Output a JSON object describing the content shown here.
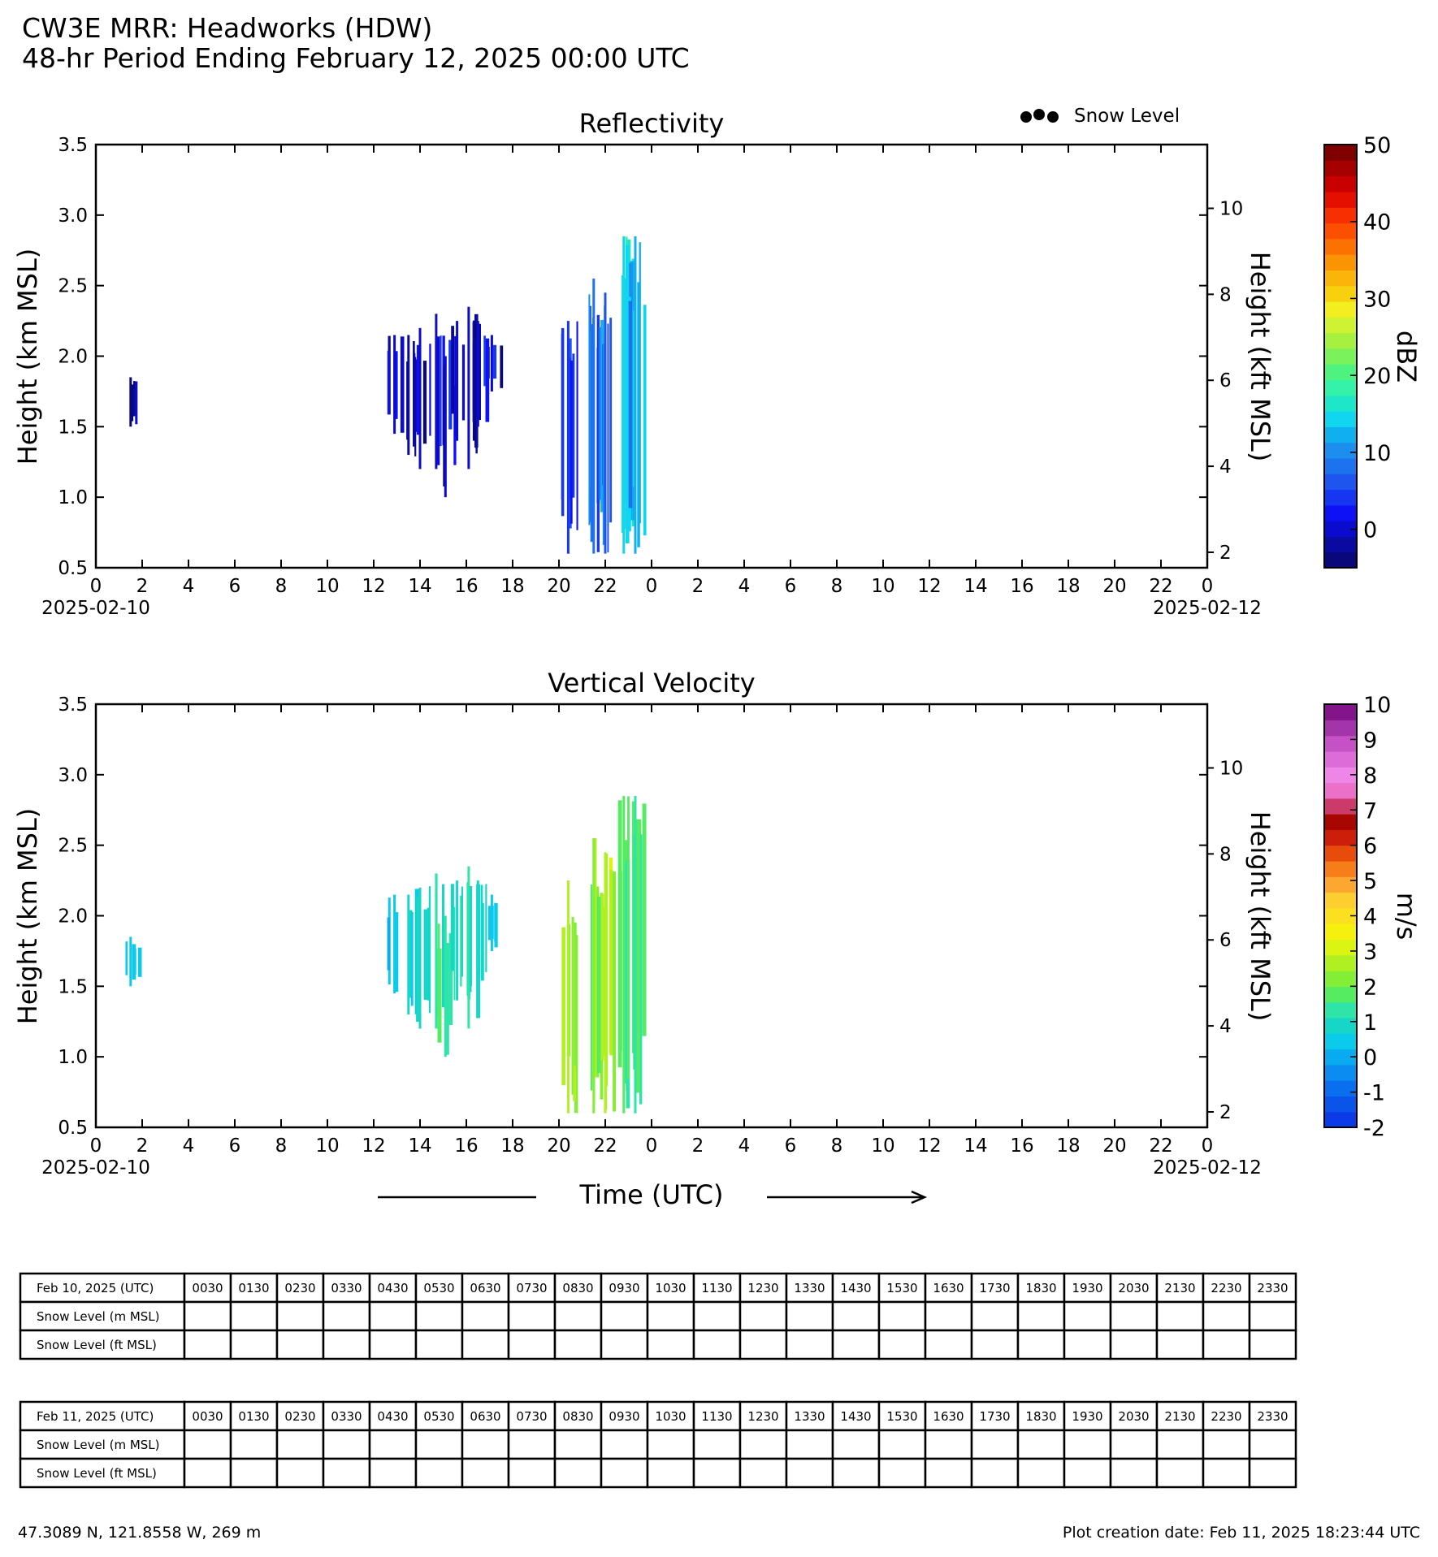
{
  "header": {
    "title_line1": "CW3E MRR: Headworks (HDW)",
    "title_line2": "48-hr Period Ending February 12, 2025 00:00 UTC"
  },
  "legend": {
    "snow_level_label": "Snow Level"
  },
  "colors": {
    "reflectivity_bar": [
      "#08087a",
      "#0a0aa0",
      "#0b0bd0",
      "#0e10f5",
      "#1637f2",
      "#1d55ee",
      "#1d72ee",
      "#1c8fee",
      "#10b0ee",
      "#10d6f0",
      "#1ee6c8",
      "#34f2a8",
      "#4ef27e",
      "#7af25c",
      "#a6f040",
      "#cff232",
      "#f2ee20",
      "#f8d00e",
      "#fbb40a",
      "#fb9405",
      "#fc7202",
      "#fc5000",
      "#f63000",
      "#e40f00",
      "#ca0000",
      "#a60000",
      "#800000"
    ],
    "velocity_bar": [
      "#0c3ae6",
      "#0b54ea",
      "#0a6fee",
      "#0a8cf0",
      "#08aaf0",
      "#0acbec",
      "#16d6c8",
      "#2ee4a8",
      "#56ec62",
      "#84ee36",
      "#b0f022",
      "#dcf412",
      "#f6f00e",
      "#fae01e",
      "#fcce30",
      "#fca830",
      "#f67e1a",
      "#e84c0a",
      "#cc1e08",
      "#a80600",
      "#cc3a6a",
      "#ea70c8",
      "#ee86e8",
      "#de6cd8",
      "#c650c6",
      "#a434aa",
      "#84148a"
    ]
  },
  "chart_data": [
    {
      "type": "heatmap",
      "title": "Reflectivity",
      "ylabel": "Height (km MSL)",
      "ylabel_right": "Height (kft MSL)",
      "ylim": [
        0.5,
        3.5
      ],
      "yticks": [
        "0.5",
        "1.0",
        "1.5",
        "2.0",
        "2.5",
        "3.0",
        "3.5"
      ],
      "yticks_right": [
        "2",
        "4",
        "6",
        "8",
        "10"
      ],
      "xlim_hours": [
        0,
        48
      ],
      "xticks": [
        "0",
        "2",
        "4",
        "6",
        "8",
        "10",
        "12",
        "14",
        "16",
        "18",
        "20",
        "22",
        "0",
        "2",
        "4",
        "6",
        "8",
        "10",
        "12",
        "14",
        "16",
        "18",
        "20",
        "22",
        "0"
      ],
      "xdate_left": "2025-02-10",
      "xdate_right": "2025-02-12",
      "colorbar": {
        "label": "dBZ",
        "min": -5,
        "max": 50,
        "ticks": [
          "0",
          "10",
          "20",
          "30",
          "40",
          "50"
        ]
      },
      "features": [
        {
          "t": 1.5,
          "h0": 1.5,
          "h1": 1.85,
          "v": -3
        },
        {
          "t": 12.9,
          "h0": 1.45,
          "h1": 2.15,
          "v": 0
        },
        {
          "t": 13.5,
          "h0": 1.3,
          "h1": 2.15,
          "v": -1
        },
        {
          "t": 14.0,
          "h0": 1.2,
          "h1": 2.2,
          "v": 0
        },
        {
          "t": 14.7,
          "h0": 1.2,
          "h1": 2.3,
          "v": 1
        },
        {
          "t": 15.1,
          "h0": 1.0,
          "h1": 2.0,
          "v": 0
        },
        {
          "t": 15.6,
          "h0": 1.4,
          "h1": 2.25,
          "v": 1
        },
        {
          "t": 16.1,
          "h0": 1.2,
          "h1": 2.35,
          "v": 0
        },
        {
          "t": 16.5,
          "h0": 1.5,
          "h1": 2.25,
          "v": 1
        },
        {
          "t": 17.1,
          "h0": 1.75,
          "h1": 2.15,
          "v": 0
        },
        {
          "t": 20.4,
          "h0": 0.6,
          "h1": 2.25,
          "v": 5
        },
        {
          "t": 21.5,
          "h0": 0.6,
          "h1": 2.55,
          "v": 8
        },
        {
          "t": 22.0,
          "h0": 0.6,
          "h1": 2.45,
          "v": 6
        },
        {
          "t": 22.8,
          "h0": 0.6,
          "h1": 2.85,
          "v": 15
        },
        {
          "t": 23.3,
          "h0": 0.6,
          "h1": 2.85,
          "v": 12
        }
      ]
    },
    {
      "type": "heatmap",
      "title": "Vertical Velocity",
      "ylabel": "Height (km MSL)",
      "ylabel_right": "Height (kft MSL)",
      "ylim": [
        0.5,
        3.5
      ],
      "yticks": [
        "0.5",
        "1.0",
        "1.5",
        "2.0",
        "2.5",
        "3.0",
        "3.5"
      ],
      "yticks_right": [
        "2",
        "4",
        "6",
        "8",
        "10"
      ],
      "xlim_hours": [
        0,
        48
      ],
      "xticks": [
        "0",
        "2",
        "4",
        "6",
        "8",
        "10",
        "12",
        "14",
        "16",
        "18",
        "20",
        "22",
        "0",
        "2",
        "4",
        "6",
        "8",
        "10",
        "12",
        "14",
        "16",
        "18",
        "20",
        "22",
        "0"
      ],
      "xdate_left": "2025-02-10",
      "xdate_right": "2025-02-12",
      "xlabel": "Time (UTC)",
      "colorbar": {
        "label": "m/s",
        "min": -2,
        "max": 10,
        "ticks": [
          "-2",
          "-1",
          "0",
          "1",
          "2",
          "3",
          "4",
          "5",
          "6",
          "7",
          "8",
          "9",
          "10"
        ]
      },
      "features": [
        {
          "t": 1.5,
          "h0": 1.5,
          "h1": 1.85,
          "v": 0.5
        },
        {
          "t": 12.9,
          "h0": 1.45,
          "h1": 2.15,
          "v": 0.5
        },
        {
          "t": 13.5,
          "h0": 1.3,
          "h1": 2.15,
          "v": 0.8
        },
        {
          "t": 14.0,
          "h0": 1.2,
          "h1": 2.2,
          "v": 0.8
        },
        {
          "t": 14.7,
          "h0": 1.2,
          "h1": 2.3,
          "v": 1.2
        },
        {
          "t": 15.1,
          "h0": 1.0,
          "h1": 2.0,
          "v": 1.5
        },
        {
          "t": 15.6,
          "h0": 1.4,
          "h1": 2.25,
          "v": 1.0
        },
        {
          "t": 16.1,
          "h0": 1.2,
          "h1": 2.35,
          "v": 1.2
        },
        {
          "t": 16.5,
          "h0": 1.5,
          "h1": 2.25,
          "v": 0.8
        },
        {
          "t": 17.1,
          "h0": 1.75,
          "h1": 2.15,
          "v": 0.5
        },
        {
          "t": 20.4,
          "h0": 0.6,
          "h1": 2.25,
          "v": 2.6
        },
        {
          "t": 21.5,
          "h0": 0.6,
          "h1": 2.55,
          "v": 2.2
        },
        {
          "t": 22.0,
          "h0": 0.6,
          "h1": 2.45,
          "v": 2.6
        },
        {
          "t": 22.8,
          "h0": 0.6,
          "h1": 2.85,
          "v": 1.6
        },
        {
          "t": 23.3,
          "h0": 0.6,
          "h1": 2.85,
          "v": 1.4
        }
      ]
    }
  ],
  "tables": [
    {
      "date_label": "Feb 10, 2025 (UTC)",
      "times": [
        "0030",
        "0130",
        "0230",
        "0330",
        "0430",
        "0530",
        "0630",
        "0730",
        "0830",
        "0930",
        "1030",
        "1130",
        "1230",
        "1330",
        "1430",
        "1530",
        "1630",
        "1730",
        "1830",
        "1930",
        "2030",
        "2130",
        "2230",
        "2330"
      ],
      "row_m_label": "Snow Level (m MSL)",
      "row_ft_label": "Snow Level (ft MSL)"
    },
    {
      "date_label": "Feb 11, 2025 (UTC)",
      "times": [
        "0030",
        "0130",
        "0230",
        "0330",
        "0430",
        "0530",
        "0630",
        "0730",
        "0830",
        "0930",
        "1030",
        "1130",
        "1230",
        "1330",
        "1430",
        "1530",
        "1630",
        "1730",
        "1830",
        "1930",
        "2030",
        "2130",
        "2230",
        "2330"
      ],
      "row_m_label": "Snow Level (m MSL)",
      "row_ft_label": "Snow Level (ft MSL)"
    }
  ],
  "footer": {
    "location": "47.3089 N, 121.8558 W, 269 m",
    "creation_date": "Plot creation date: Feb 11, 2025 18:23:44 UTC"
  }
}
